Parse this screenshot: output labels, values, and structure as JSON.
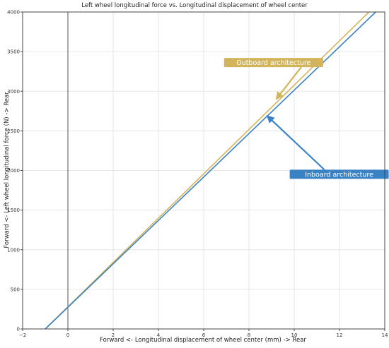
{
  "chart_data": {
    "type": "line",
    "title": "Left wheel longitudinal force vs. Longitudinal displacement of wheel center",
    "xlabel": "Forward <- Longitudinal displacement of wheel center (mm) -> Rear",
    "ylabel": "Forward <- Left wheel longitudinal force (N) -> Rear",
    "xlim": [
      -2,
      14
    ],
    "ylim": [
      0,
      4000
    ],
    "x_ticks": [
      -2,
      0,
      2,
      4,
      6,
      8,
      10,
      12,
      14
    ],
    "x_tick_labels": [
      "−2",
      "0",
      "2",
      "4",
      "6",
      "8",
      "10",
      "12",
      "14"
    ],
    "y_ticks": [
      0,
      500,
      1000,
      1500,
      2000,
      2500,
      3000,
      3500,
      4000
    ],
    "y_tick_labels": [
      "0",
      "500",
      "1000",
      "1500",
      "2000",
      "2500",
      "3000",
      "3500",
      "4000"
    ],
    "grid": true,
    "series": [
      {
        "name": "Outboard architecture",
        "color": "#d2b55b",
        "points": [
          [
            -1.0,
            0
          ],
          [
            13.3,
            4000
          ]
        ]
      },
      {
        "name": "Inboard architecture",
        "color": "#3b82c4",
        "points": [
          [
            -1.0,
            0
          ],
          [
            13.6,
            4000
          ]
        ]
      }
    ],
    "annotations": [
      {
        "text": "Outboard architecture",
        "series": 0,
        "color": "#d2b55b",
        "box_at": [
          6.9,
          3420
        ],
        "arrow_to": [
          9.2,
          2900
        ]
      },
      {
        "text": "Inboard architecture",
        "series": 1,
        "color": "#3b82c4",
        "box_at": [
          9.8,
          2010
        ],
        "arrow_to": [
          8.8,
          2690
        ]
      }
    ]
  }
}
